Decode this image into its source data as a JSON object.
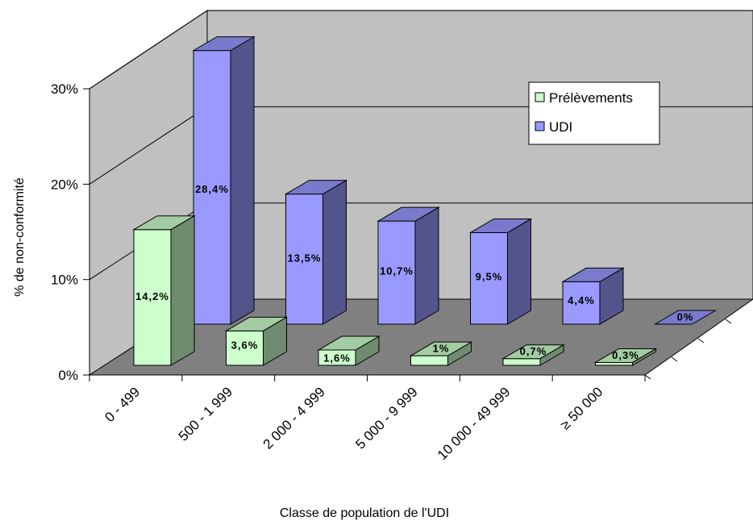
{
  "chart_data": {
    "type": "bar",
    "title": "",
    "xlabel": "Classe de population de l'UDI",
    "ylabel": "% de non-conformité",
    "categories": [
      "0 - 499",
      "500 - 1 999",
      "2 000 - 4 999",
      "5 000 - 9 999",
      "10 000 - 49 999",
      "≥ 50 000"
    ],
    "series": [
      {
        "name": "Prélèvements",
        "values": [
          14.2,
          3.6,
          1.6,
          1.0,
          0.7,
          0.3
        ],
        "labels": [
          "14,2%",
          "3,6%",
          "1,6%",
          "1%",
          "0,7%",
          "0,3%"
        ],
        "color": "#ccffcc"
      },
      {
        "name": "UDI",
        "values": [
          28.4,
          13.5,
          10.7,
          9.5,
          4.4,
          0
        ],
        "labels": [
          "28,4%",
          "13,5%",
          "10,7%",
          "9,5%",
          "4,4%",
          "0%"
        ],
        "color": "#9999ff"
      }
    ],
    "yticks": [
      "0%",
      "10%",
      "20%",
      "30%"
    ],
    "ylim": [
      0,
      30
    ],
    "legend_position": "right",
    "grid": true
  }
}
